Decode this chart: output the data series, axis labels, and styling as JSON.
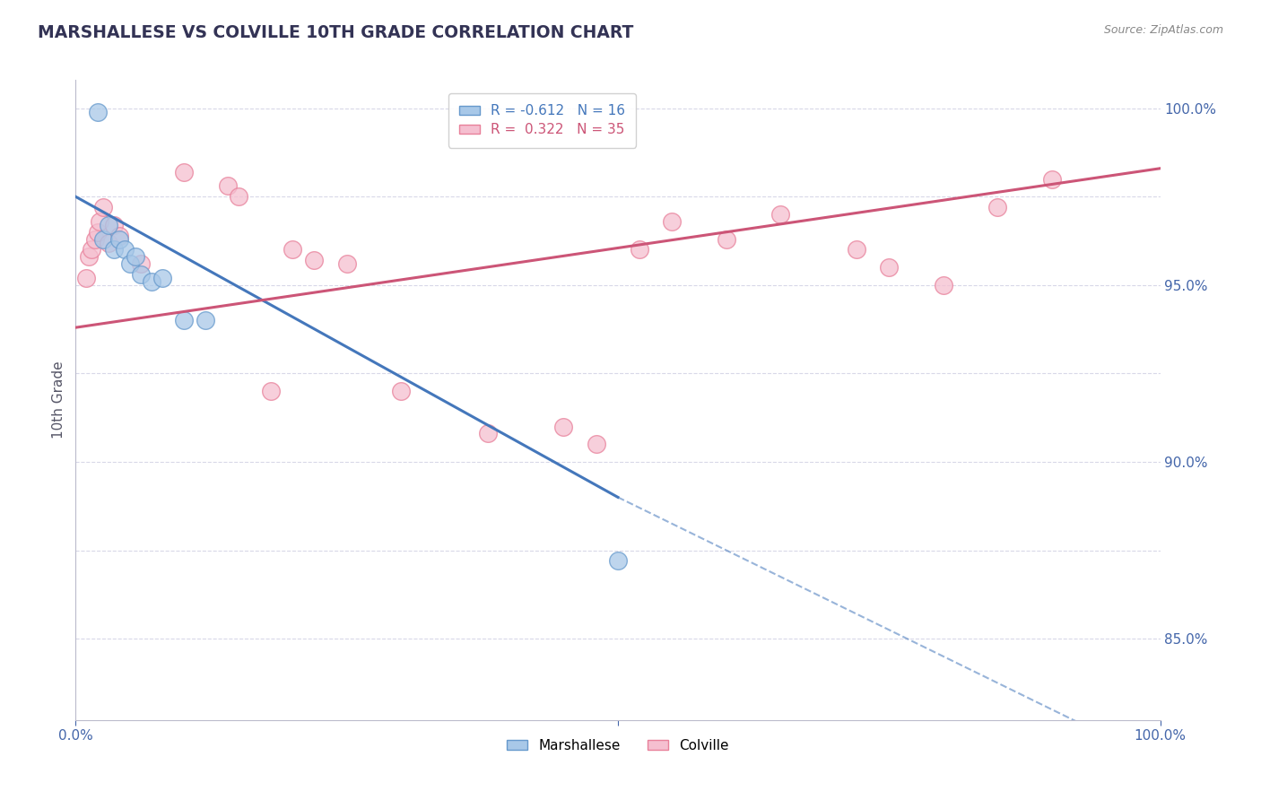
{
  "title": "MARSHALLESE VS COLVILLE 10TH GRADE CORRELATION CHART",
  "source": "Source: ZipAtlas.com",
  "ylabel": "10th Grade",
  "xlim": [
    0.0,
    1.0
  ],
  "ylim": [
    0.827,
    1.008
  ],
  "ytick_positions": [
    0.85,
    0.9,
    0.95,
    1.0
  ],
  "ytick_labels": [
    "85.0%",
    "90.0%",
    "95.0%",
    "100.0%"
  ],
  "xtick_positions": [
    0.0,
    0.5,
    1.0
  ],
  "xtick_labels": [
    "0.0%",
    "",
    "100.0%"
  ],
  "grid_lines_y": [
    0.85,
    0.875,
    0.9,
    0.925,
    0.95,
    0.975,
    1.0
  ],
  "marshallese_x": [
    0.02,
    0.025,
    0.03,
    0.035,
    0.04,
    0.045,
    0.05,
    0.055,
    0.06,
    0.07,
    0.08,
    0.1,
    0.12,
    0.5
  ],
  "marshallese_y": [
    0.999,
    0.963,
    0.967,
    0.96,
    0.963,
    0.96,
    0.956,
    0.958,
    0.953,
    0.951,
    0.952,
    0.94,
    0.94,
    0.872
  ],
  "colville_x": [
    0.01,
    0.012,
    0.015,
    0.018,
    0.02,
    0.022,
    0.025,
    0.03,
    0.035,
    0.04,
    0.06,
    0.1,
    0.14,
    0.15,
    0.18,
    0.2,
    0.22,
    0.25,
    0.3,
    0.38,
    0.45,
    0.48,
    0.52,
    0.55,
    0.6,
    0.65,
    0.72,
    0.75,
    0.8,
    0.85,
    0.9
  ],
  "colville_y": [
    0.952,
    0.958,
    0.96,
    0.963,
    0.965,
    0.968,
    0.972,
    0.962,
    0.967,
    0.964,
    0.956,
    0.982,
    0.978,
    0.975,
    0.92,
    0.96,
    0.957,
    0.956,
    0.92,
    0.908,
    0.91,
    0.905,
    0.96,
    0.968,
    0.963,
    0.97,
    0.96,
    0.955,
    0.95,
    0.972,
    0.98
  ],
  "blue_scatter_color": "#a8c8e8",
  "blue_edge_color": "#6699cc",
  "pink_scatter_color": "#f5bfd0",
  "pink_edge_color": "#e8809a",
  "trend_blue_color": "#4477bb",
  "trend_pink_color": "#cc5577",
  "grid_color": "#d8d8e8",
  "title_color": "#333355",
  "axis_label_color": "#4466aa",
  "background_color": "#ffffff",
  "blue_line_start_x": 0.0,
  "blue_line_start_y": 0.975,
  "blue_line_solid_end_x": 0.5,
  "blue_line_solid_end_y": 0.89,
  "blue_line_dash_end_x": 1.0,
  "blue_line_dash_end_y": 0.815,
  "pink_line_start_x": 0.0,
  "pink_line_start_y": 0.938,
  "pink_line_end_x": 1.0,
  "pink_line_end_y": 0.983
}
